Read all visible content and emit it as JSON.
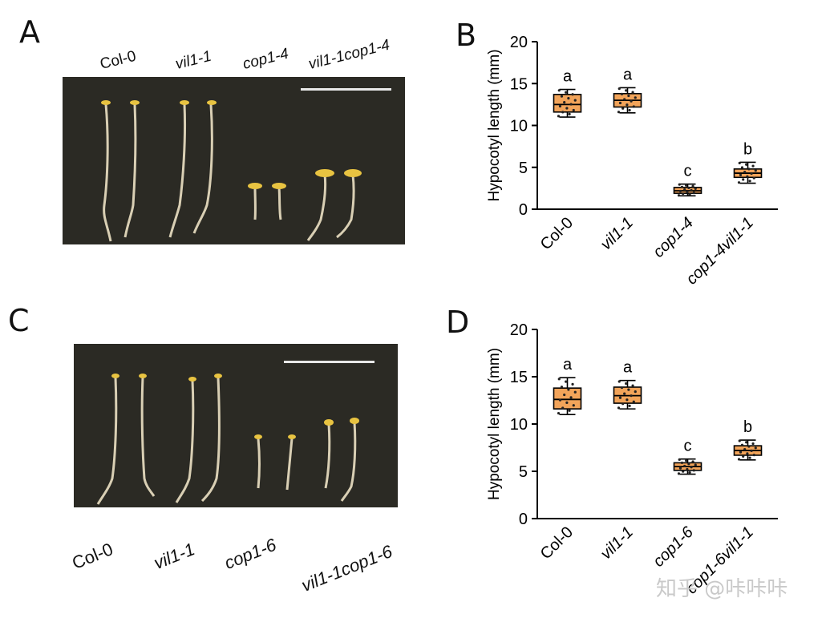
{
  "panels": {
    "a": {
      "letter": "A",
      "genotypes": [
        "Col-0",
        "vil1-1",
        "cop1-4",
        "vil1-1cop1-4"
      ]
    },
    "b": {
      "letter": "B"
    },
    "c": {
      "letter": "C",
      "genotypes": [
        "Col-0",
        "vil1-1",
        "cop1-6",
        "vil1-1cop1-6"
      ]
    },
    "d": {
      "letter": "D"
    }
  },
  "colors": {
    "box_fill": "#f2a45a",
    "box_stroke": "#000000",
    "photo_bg": "#2b2a24",
    "scale_bar": "#e8e8e8",
    "seedling": "#d9cfb4",
    "cotyledon": "#e8c341"
  },
  "watermark": "知乎 @咔咔咔",
  "chart_data": [
    {
      "id": "B",
      "type": "box",
      "ylabel": "Hypocotyl length (mm)",
      "ylim": [
        0,
        20
      ],
      "yticks": [
        "0",
        "5",
        "10",
        "15",
        "20"
      ],
      "categories": [
        "Col-0",
        "vil1-1",
        "cop1-4",
        "cop1-4vil1-1"
      ],
      "boxes": [
        {
          "min": 11.0,
          "q1": 11.6,
          "median": 12.5,
          "q3": 13.7,
          "max": 14.3,
          "letter": "a"
        },
        {
          "min": 11.5,
          "q1": 12.2,
          "median": 13.0,
          "q3": 13.8,
          "max": 14.5,
          "letter": "a"
        },
        {
          "min": 1.6,
          "q1": 1.9,
          "median": 2.2,
          "q3": 2.6,
          "max": 3.0,
          "letter": "c"
        },
        {
          "min": 3.1,
          "q1": 3.8,
          "median": 4.3,
          "q3": 4.8,
          "max": 5.6,
          "letter": "b"
        }
      ]
    },
    {
      "id": "D",
      "type": "box",
      "ylabel": "Hypocotyl length (mm)",
      "ylim": [
        0,
        20
      ],
      "yticks": [
        "0",
        "5",
        "10",
        "15",
        "20"
      ],
      "categories": [
        "Col-0",
        "vil1-1",
        "cop1-6",
        "cop1-6vil1-1"
      ],
      "boxes": [
        {
          "min": 11.0,
          "q1": 11.6,
          "median": 12.6,
          "q3": 13.8,
          "max": 14.9,
          "letter": "a"
        },
        {
          "min": 11.6,
          "q1": 12.2,
          "median": 13.0,
          "q3": 13.9,
          "max": 14.6,
          "letter": "a"
        },
        {
          "min": 4.7,
          "q1": 5.1,
          "median": 5.5,
          "q3": 5.9,
          "max": 6.3,
          "letter": "c"
        },
        {
          "min": 6.2,
          "q1": 6.7,
          "median": 7.2,
          "q3": 7.7,
          "max": 8.3,
          "letter": "b"
        }
      ]
    }
  ]
}
